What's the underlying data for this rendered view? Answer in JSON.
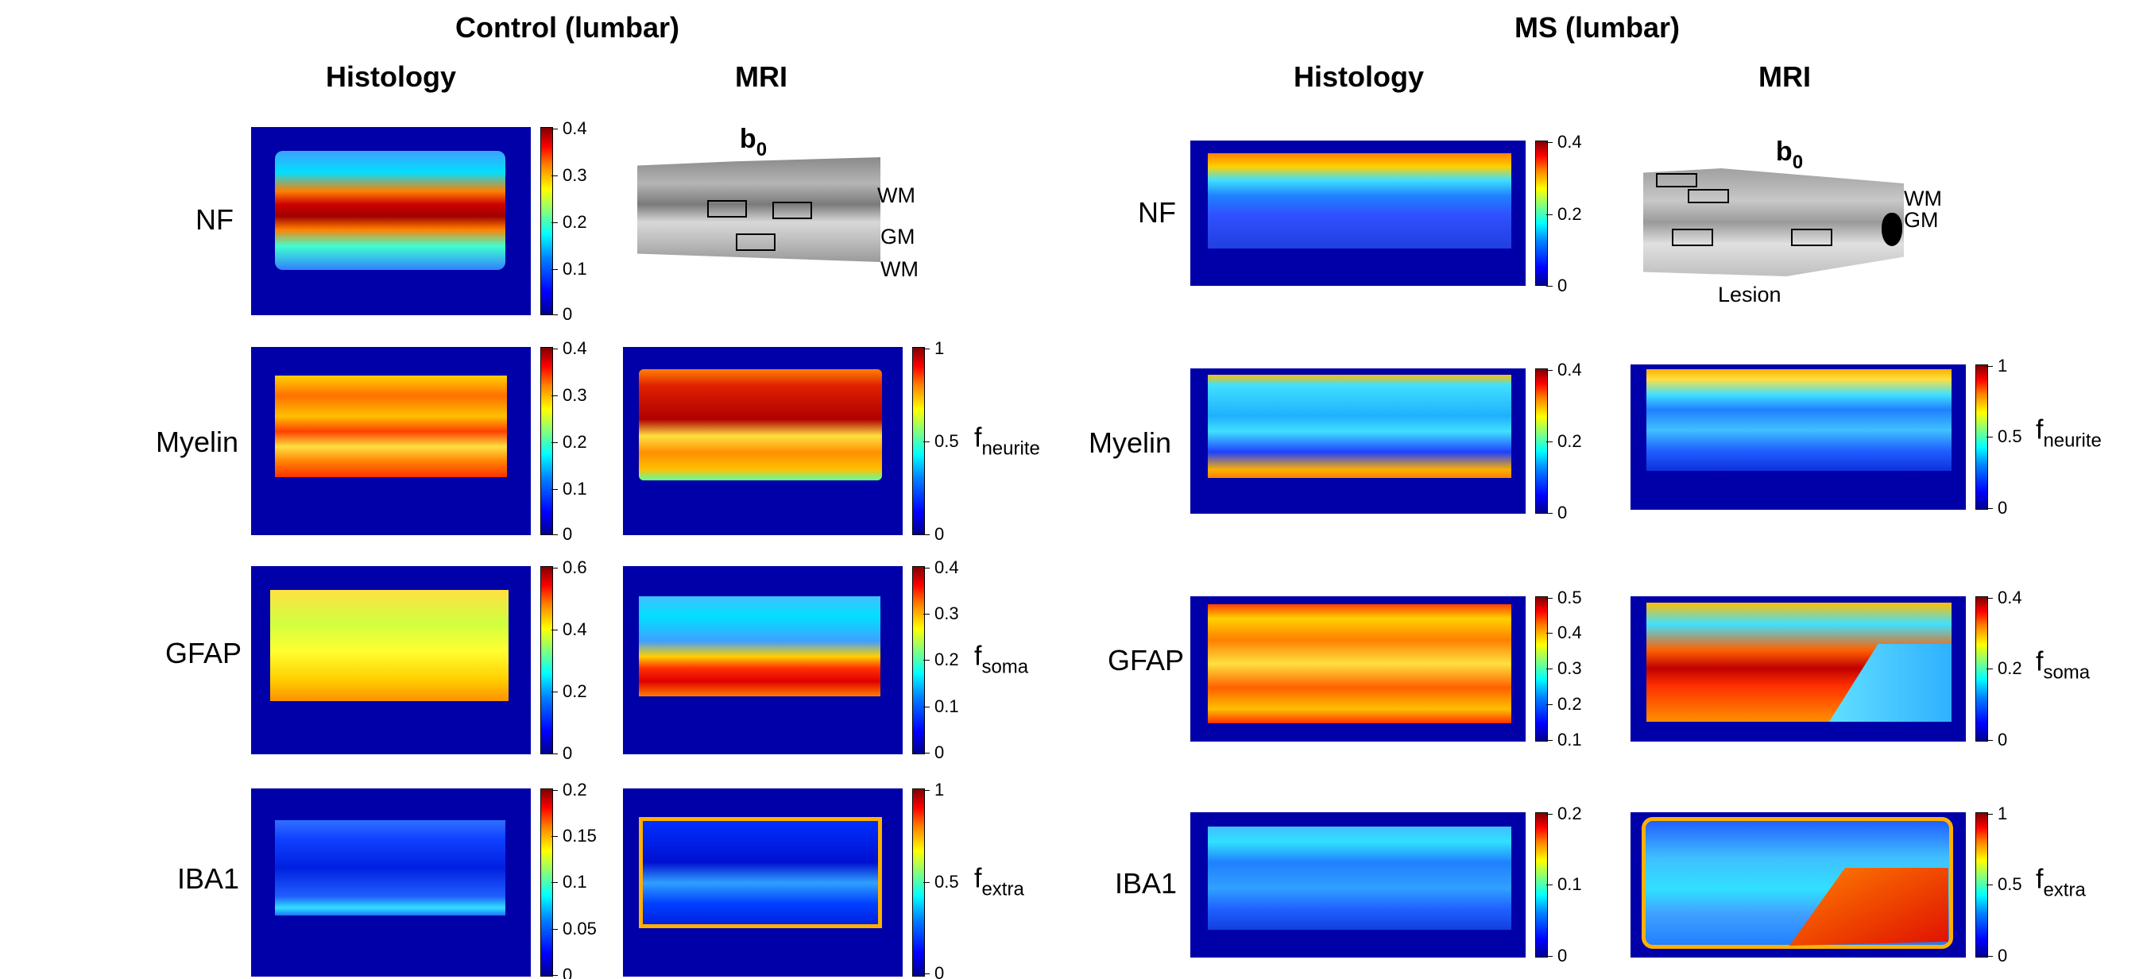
{
  "panels": {
    "control": {
      "title": "Control (lumbar)"
    },
    "ms": {
      "title": "MS (lumbar)"
    }
  },
  "columns": {
    "histology": "Histology",
    "mri": "MRI"
  },
  "rows": {
    "nf": "NF",
    "myelin": "Myelin",
    "gfap": "GFAP",
    "iba1": "IBA1"
  },
  "b0": {
    "base": "b",
    "sub": "0"
  },
  "regions": {
    "wm": "WM",
    "gm": "GM",
    "lesion": "Lesion"
  },
  "metrics": {
    "neurite": {
      "base": "f",
      "sub": "neurite"
    },
    "soma": {
      "base": "f",
      "sub": "soma"
    },
    "extra": {
      "base": "f",
      "sub": "extra"
    }
  },
  "colorbars": {
    "ctrl_nf": [
      "0.4",
      "0.3",
      "0.2",
      "0.1",
      "0"
    ],
    "ctrl_myelin": [
      "0.4",
      "0.3",
      "0.2",
      "0.1",
      "0"
    ],
    "ctrl_gfap": [
      "0.6",
      "0.4",
      "0.2",
      "0"
    ],
    "ctrl_iba1": [
      "0.2",
      "0.15",
      "0.1",
      "0.05",
      "0"
    ],
    "ctrl_neurite": [
      "1",
      "0.5",
      "0"
    ],
    "ctrl_soma": [
      "0.4",
      "0.3",
      "0.2",
      "0.1",
      "0"
    ],
    "ctrl_extra": [
      "1",
      "0.5",
      "0"
    ],
    "ms_nf": [
      "0.4",
      "0.2",
      "0"
    ],
    "ms_myelin": [
      "0.4",
      "0.2",
      "0"
    ],
    "ms_gfap": [
      "0.5",
      "0.4",
      "0.3",
      "0.2",
      "0.1"
    ],
    "ms_iba1": [
      "0.2",
      "0.1",
      "0"
    ],
    "ms_neurite": [
      "1",
      "0.5",
      "0"
    ],
    "ms_soma": [
      "0.4",
      "0.2",
      "0"
    ],
    "ms_extra": [
      "1",
      "0.5",
      "0"
    ]
  },
  "colors": {
    "background": "#0000a8",
    "jet_high": "#800000",
    "jet_low": "#00008f"
  }
}
